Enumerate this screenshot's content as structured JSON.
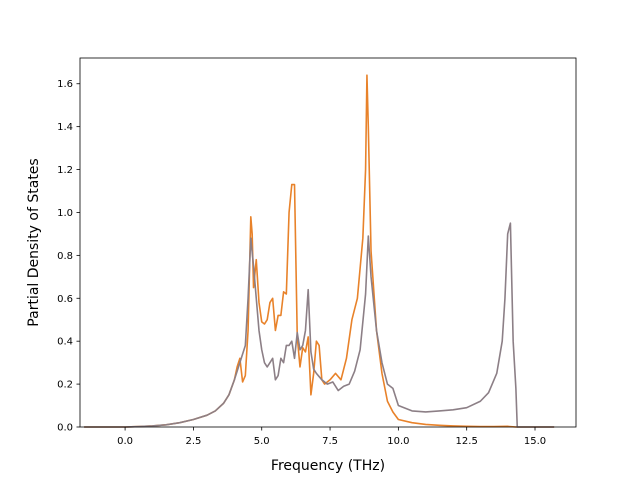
{
  "chart_data": {
    "type": "line",
    "title": "",
    "xlabel": "Frequency (THz)",
    "ylabel": "Partial Density of States",
    "xlim": [
      -1.65,
      16.5
    ],
    "ylim": [
      0.0,
      1.72
    ],
    "xticks": [
      0.0,
      2.5,
      5.0,
      7.5,
      10.0,
      12.5,
      15.0
    ],
    "xtick_labels": [
      "0.0",
      "2.5",
      "5.0",
      "7.5",
      "10.0",
      "12.5",
      "15.0"
    ],
    "yticks": [
      0.0,
      0.2,
      0.4,
      0.6,
      0.8,
      1.0,
      1.2,
      1.4,
      1.6
    ],
    "ytick_labels": [
      "0.0",
      "0.2",
      "0.4",
      "0.6",
      "0.8",
      "1.0",
      "1.2",
      "1.4",
      "1.6"
    ],
    "grid": false,
    "legend": "none",
    "series": [
      {
        "color": "#e8822a",
        "x": [
          -1.5,
          0.0,
          0.5,
          1.0,
          1.5,
          2.0,
          2.5,
          3.0,
          3.3,
          3.6,
          3.8,
          4.0,
          4.1,
          4.2,
          4.3,
          4.4,
          4.5,
          4.6,
          4.65,
          4.7,
          4.8,
          4.9,
          5.0,
          5.1,
          5.2,
          5.3,
          5.4,
          5.5,
          5.6,
          5.7,
          5.8,
          5.9,
          6.0,
          6.1,
          6.2,
          6.3,
          6.4,
          6.5,
          6.6,
          6.7,
          6.8,
          6.9,
          7.0,
          7.1,
          7.2,
          7.3,
          7.5,
          7.7,
          7.9,
          8.1,
          8.3,
          8.5,
          8.7,
          8.8,
          8.85,
          8.9,
          9.0,
          9.2,
          9.4,
          9.6,
          9.8,
          10.0,
          10.5,
          11.0,
          11.5,
          12.0,
          12.5,
          13.0,
          13.5,
          14.0,
          14.3,
          15.0,
          15.7
        ],
        "values": [
          0.0,
          0.0,
          0.002,
          0.005,
          0.01,
          0.02,
          0.035,
          0.055,
          0.075,
          0.11,
          0.15,
          0.22,
          0.28,
          0.32,
          0.21,
          0.24,
          0.45,
          0.98,
          0.9,
          0.65,
          0.78,
          0.58,
          0.49,
          0.48,
          0.5,
          0.58,
          0.6,
          0.45,
          0.52,
          0.52,
          0.63,
          0.62,
          1.0,
          1.13,
          1.13,
          0.42,
          0.28,
          0.37,
          0.35,
          0.42,
          0.15,
          0.25,
          0.4,
          0.38,
          0.22,
          0.2,
          0.22,
          0.25,
          0.22,
          0.32,
          0.5,
          0.6,
          0.88,
          1.2,
          1.64,
          1.4,
          0.82,
          0.45,
          0.25,
          0.12,
          0.07,
          0.035,
          0.02,
          0.012,
          0.008,
          0.005,
          0.003,
          0.002,
          0.002,
          0.003,
          0.0,
          0.0,
          0.0
        ]
      },
      {
        "color": "#8c7f86",
        "x": [
          -1.5,
          0.0,
          0.5,
          1.0,
          1.5,
          2.0,
          2.5,
          3.0,
          3.3,
          3.6,
          3.8,
          4.0,
          4.2,
          4.4,
          4.5,
          4.6,
          4.7,
          4.8,
          4.9,
          5.0,
          5.1,
          5.2,
          5.3,
          5.4,
          5.5,
          5.6,
          5.7,
          5.8,
          5.9,
          6.0,
          6.1,
          6.2,
          6.3,
          6.4,
          6.5,
          6.6,
          6.7,
          6.8,
          6.9,
          7.0,
          7.2,
          7.4,
          7.6,
          7.8,
          8.0,
          8.2,
          8.4,
          8.6,
          8.8,
          8.9,
          9.0,
          9.2,
          9.4,
          9.6,
          9.8,
          10.0,
          10.5,
          11.0,
          11.5,
          12.0,
          12.5,
          13.0,
          13.3,
          13.6,
          13.8,
          13.9,
          14.0,
          14.1,
          14.2,
          14.3,
          14.35,
          15.0,
          15.7
        ],
        "values": [
          0.0,
          0.0,
          0.002,
          0.005,
          0.01,
          0.02,
          0.035,
          0.055,
          0.075,
          0.11,
          0.15,
          0.22,
          0.3,
          0.38,
          0.6,
          0.88,
          0.75,
          0.6,
          0.45,
          0.36,
          0.3,
          0.28,
          0.3,
          0.32,
          0.22,
          0.24,
          0.32,
          0.3,
          0.38,
          0.38,
          0.4,
          0.32,
          0.44,
          0.36,
          0.38,
          0.45,
          0.64,
          0.35,
          0.27,
          0.25,
          0.22,
          0.2,
          0.21,
          0.17,
          0.19,
          0.2,
          0.26,
          0.36,
          0.62,
          0.89,
          0.7,
          0.45,
          0.3,
          0.2,
          0.18,
          0.1,
          0.075,
          0.07,
          0.075,
          0.08,
          0.09,
          0.12,
          0.16,
          0.25,
          0.4,
          0.6,
          0.9,
          0.95,
          0.4,
          0.18,
          0.0,
          0.0,
          0.0
        ]
      }
    ]
  }
}
